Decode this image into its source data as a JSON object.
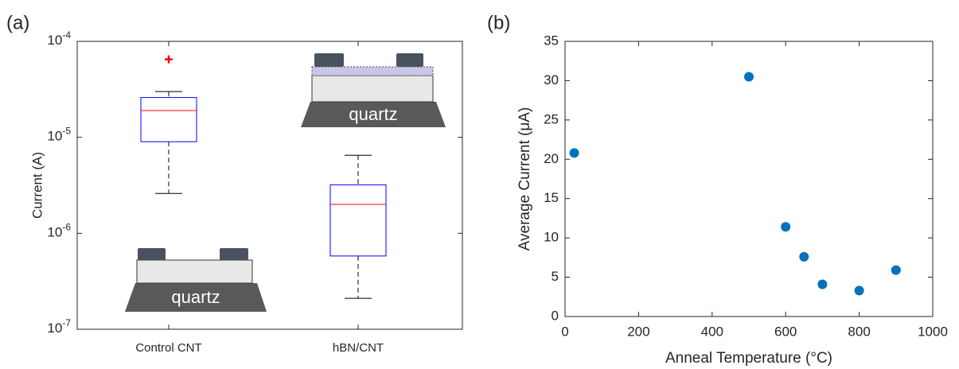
{
  "chart_data": [
    {
      "type": "box",
      "panel_label": "(a)",
      "ylabel": "Current (A)",
      "log_y": true,
      "ylim": [
        1e-07,
        0.0001
      ],
      "yticks": [
        {
          "value": 1e-07,
          "base": "10",
          "exp": "-7"
        },
        {
          "value": 1e-06,
          "base": "10",
          "exp": "-6"
        },
        {
          "value": 1e-05,
          "base": "10",
          "exp": "-5"
        },
        {
          "value": 0.0001,
          "base": "10",
          "exp": "-4"
        }
      ],
      "categories": [
        "Control CNT",
        "hBN/CNT"
      ],
      "box_color": "#0000ff",
      "median_color": "#ff0000",
      "outlier_color": "#ff0000",
      "boxes": [
        {
          "whisker_low": 2.6e-06,
          "q1": 9e-06,
          "median": 1.9e-05,
          "q3": 2.6e-05,
          "whisker_high": 3e-05,
          "outliers": [
            6.5e-05
          ]
        },
        {
          "whisker_low": 2.1e-07,
          "q1": 5.8e-07,
          "median": 2e-06,
          "q3": 3.2e-06,
          "whisker_high": 6.5e-06,
          "outliers": []
        }
      ],
      "insets": [
        "quartz",
        "quartz"
      ]
    },
    {
      "type": "scatter",
      "panel_label": "(b)",
      "xlabel": "Anneal Temperature (°C)",
      "ylabel": "Average Current (μA)",
      "color": "#0072bd",
      "xlim": [
        0,
        1000
      ],
      "ylim": [
        0,
        35
      ],
      "xticks": [
        0,
        200,
        400,
        600,
        800,
        1000
      ],
      "yticks": [
        0,
        5,
        10,
        15,
        20,
        25,
        30,
        35
      ],
      "x": [
        25,
        500,
        600,
        650,
        700,
        800,
        900
      ],
      "values": [
        20.8,
        30.5,
        11.4,
        7.6,
        4.1,
        3.3,
        5.9
      ]
    }
  ]
}
